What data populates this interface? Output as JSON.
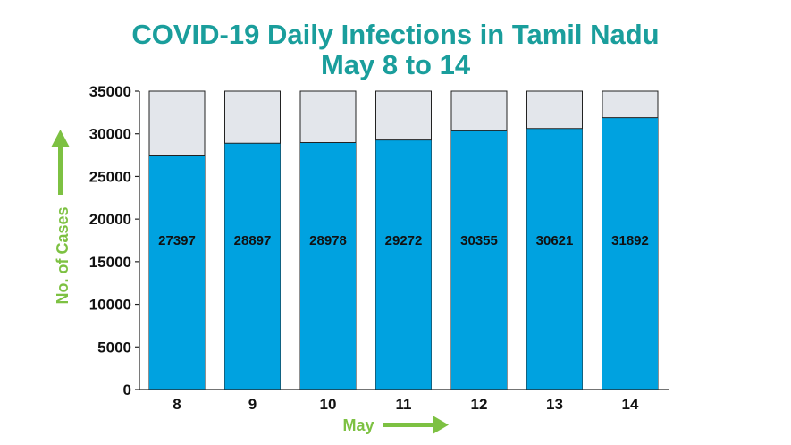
{
  "colors": {
    "title": "#1a9e9c",
    "bar_fill": "#00a2e0",
    "bar_remainder": "#e3e6eb",
    "bar_outline": "#222222",
    "axis_title": "#7dc142"
  },
  "chart_data": {
    "type": "bar",
    "title": "COVID-19 Daily Infections in Tamil Nadu",
    "subtitle": "May 8 to 14",
    "xlabel": "May",
    "ylabel": "No. of Cases",
    "categories": [
      "8",
      "9",
      "10",
      "11",
      "12",
      "13",
      "14"
    ],
    "values": [
      27397,
      28897,
      28978,
      29272,
      30355,
      30621,
      31892
    ],
    "data_labels": [
      "27397",
      "28897",
      "28978",
      "29272",
      "30355",
      "30621",
      "31892"
    ],
    "ylim": [
      0,
      35000
    ],
    "yticks": [
      0,
      5000,
      10000,
      15000,
      20000,
      25000,
      30000,
      35000
    ],
    "ytick_labels": [
      "0",
      "5000",
      "10000",
      "15000",
      "20000",
      "25000",
      "30000",
      "35000"
    ],
    "grid": false,
    "legend": "none"
  }
}
